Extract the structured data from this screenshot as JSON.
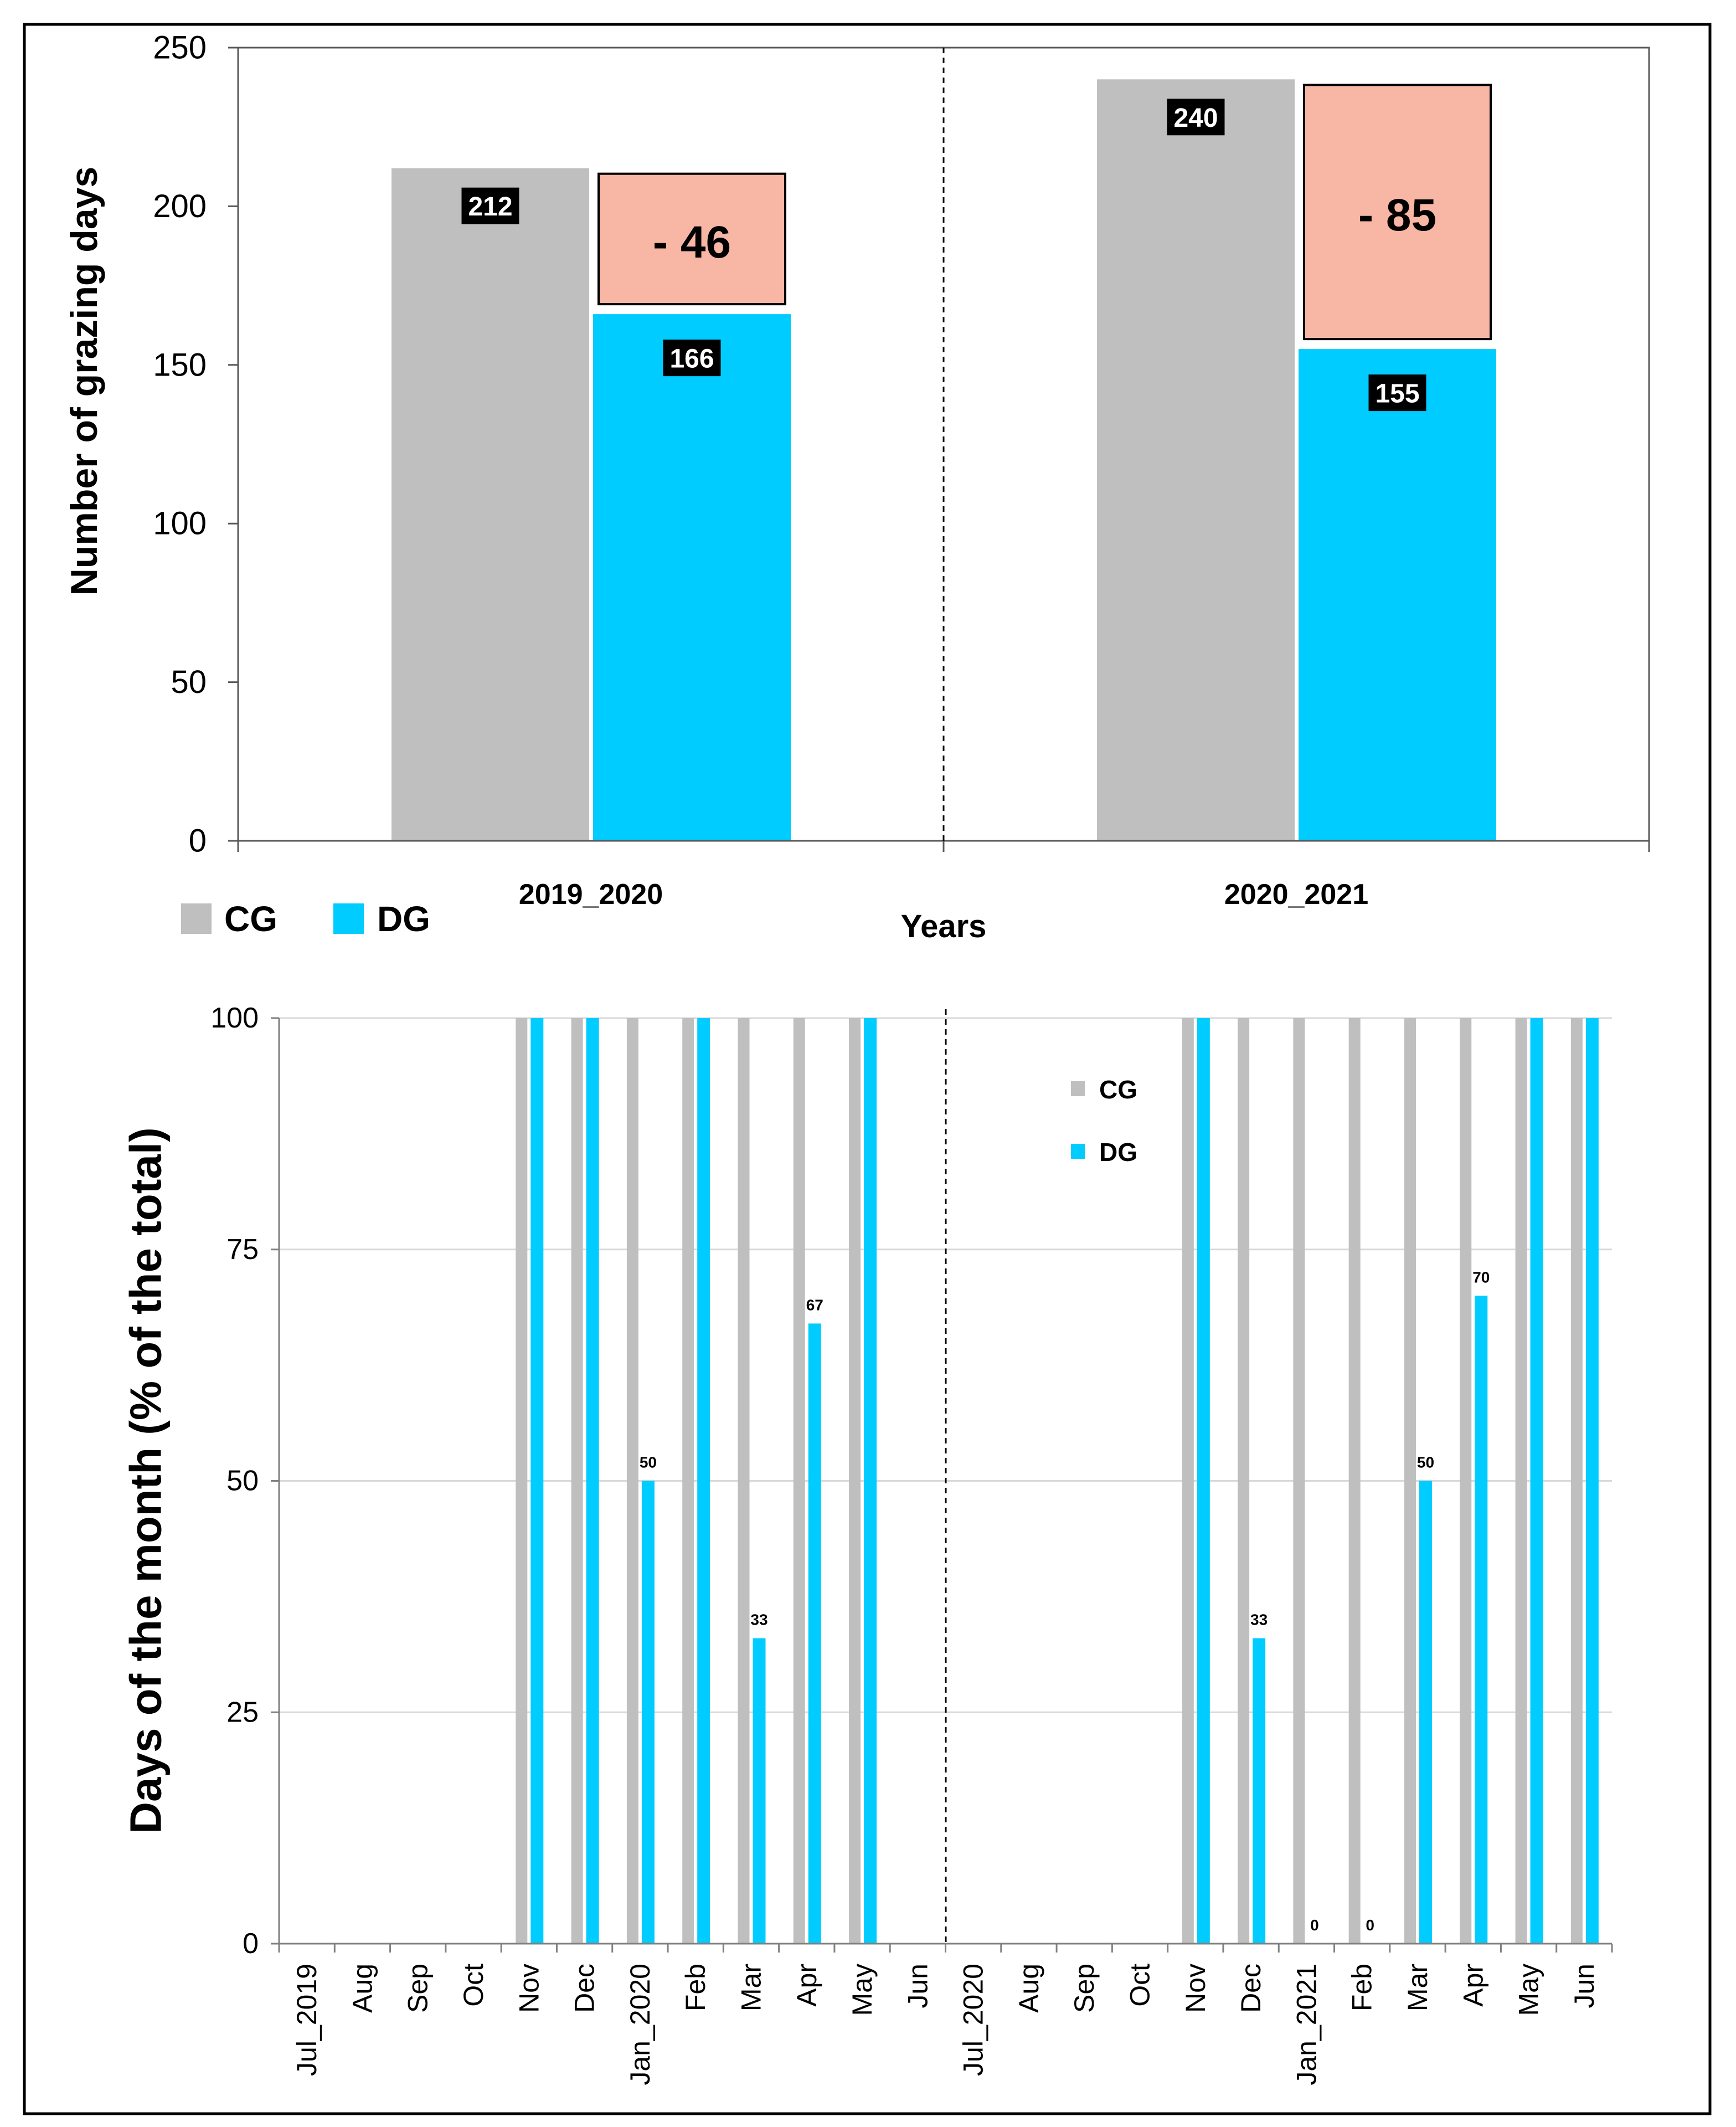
{
  "colors": {
    "cg": "#BFBFBF",
    "dg": "#00CCFF",
    "diff": "#F8B6A4",
    "label_bg": "#000000"
  },
  "chart_data": [
    {
      "type": "bar",
      "title": "",
      "ylabel": "Number of grazing days",
      "xlabel": "Years",
      "ylim": [
        0,
        250
      ],
      "yticks": [
        0,
        50,
        100,
        150,
        200,
        250
      ],
      "grid": false,
      "categories": [
        "2019_2020",
        "2020_2021"
      ],
      "series": [
        {
          "name": "CG",
          "values": [
            212,
            240
          ]
        },
        {
          "name": "DG",
          "values": [
            166,
            155
          ]
        }
      ],
      "difference_labels": [
        "- 46",
        "- 85"
      ],
      "legend_position": "bottom-left"
    },
    {
      "type": "bar",
      "title": "",
      "ylabel": "Days of the month (% of the total)",
      "ylim": [
        0,
        100
      ],
      "yticks": [
        0,
        25,
        50,
        75,
        100
      ],
      "grid": true,
      "categories": [
        "Jul_2019",
        "Aug",
        "Sep",
        "Oct",
        "Nov",
        "Dec",
        "Jan_2020",
        "Feb",
        "Mar",
        "Apr",
        "May",
        "Jun",
        "Jul_2020",
        "Aug",
        "Sep",
        "Oct",
        "Nov",
        "Dec",
        "Jan_2021",
        "Feb",
        "Mar",
        "Apr",
        "May",
        "Jun"
      ],
      "series": [
        {
          "name": "CG",
          "values": [
            null,
            null,
            null,
            null,
            100,
            100,
            100,
            100,
            100,
            100,
            100,
            null,
            null,
            null,
            null,
            null,
            100,
            100,
            100,
            100,
            100,
            100,
            100,
            100
          ]
        },
        {
          "name": "DG",
          "values": [
            null,
            null,
            null,
            null,
            100,
            100,
            50,
            100,
            33,
            67,
            100,
            null,
            null,
            null,
            null,
            null,
            100,
            33,
            0,
            0,
            50,
            70,
            100,
            100
          ]
        }
      ],
      "data_labels": [
        null,
        null,
        null,
        null,
        null,
        null,
        "50",
        null,
        "33",
        "67",
        null,
        null,
        null,
        null,
        null,
        null,
        null,
        "33",
        "0",
        "0",
        "50",
        "70",
        null,
        null
      ],
      "legend_position": "upper-center"
    }
  ]
}
